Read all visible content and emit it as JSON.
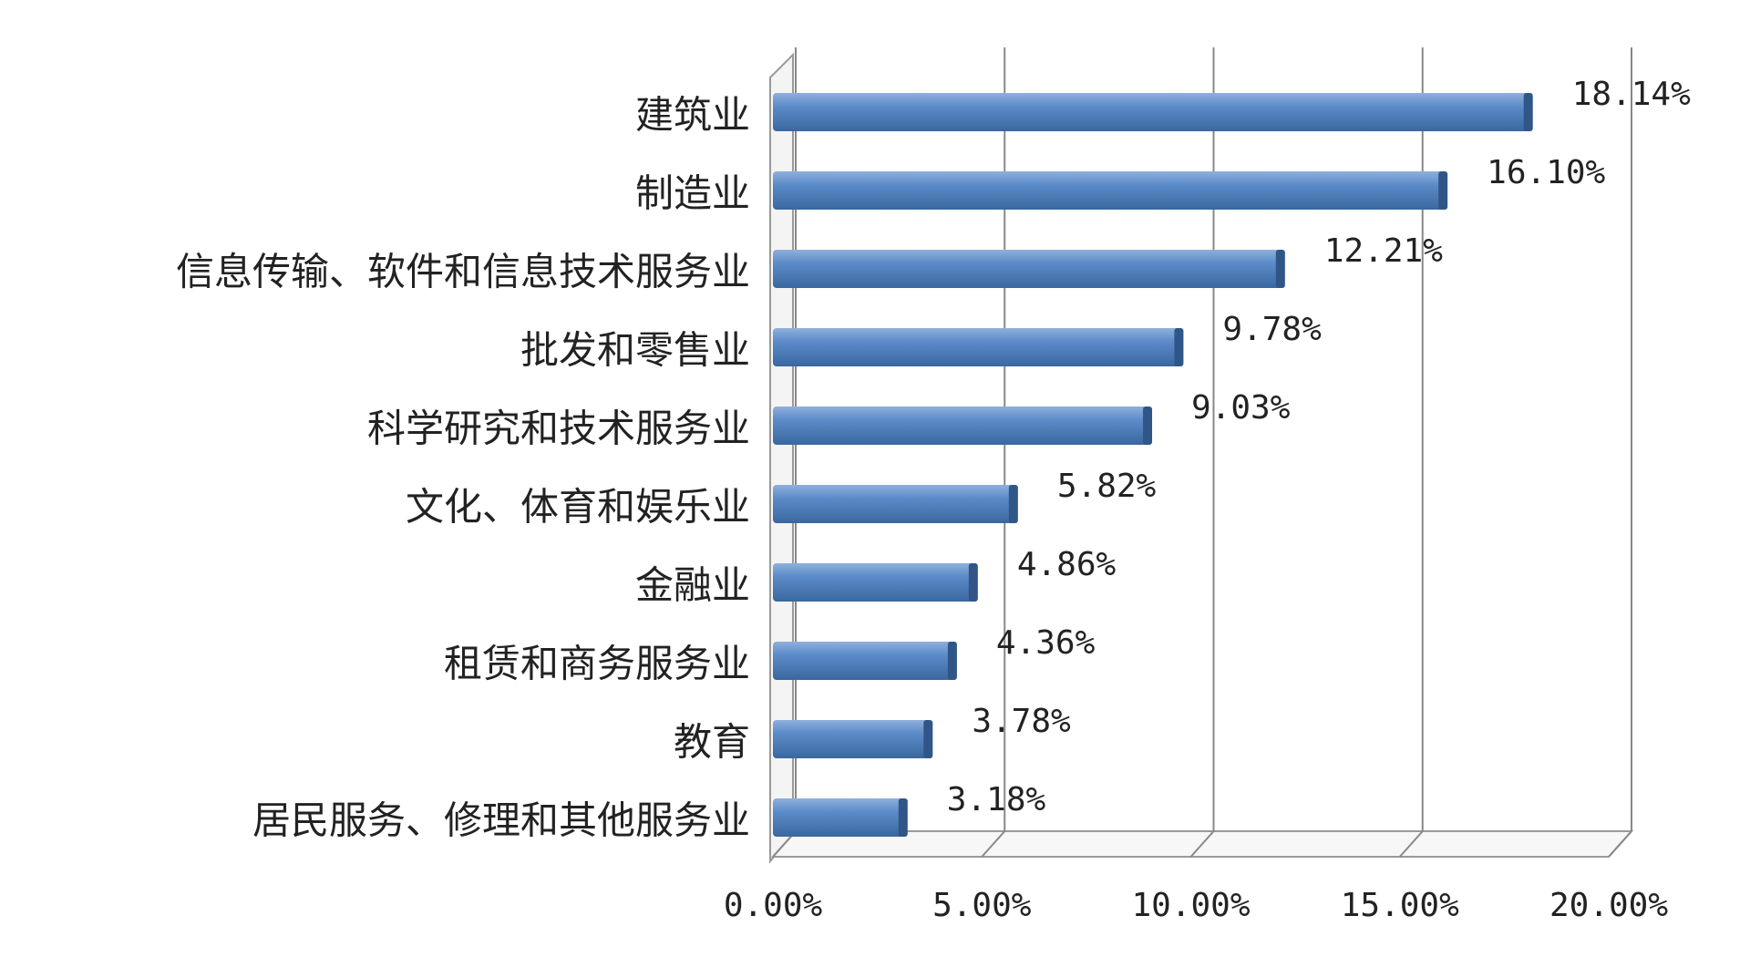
{
  "chart_data": {
    "type": "bar",
    "orientation": "horizontal",
    "categories": [
      "建筑业",
      "制造业",
      "信息传输、软件和信息技术服务业",
      "批发和零售业",
      "科学研究和技术服务业",
      "文化、体育和娱乐业",
      "金融业",
      "租赁和商务服务业",
      "教育",
      "居民服务、修理和其他服务业"
    ],
    "values": [
      18.14,
      16.1,
      12.21,
      9.78,
      9.03,
      5.82,
      4.86,
      4.36,
      3.78,
      3.18
    ],
    "value_labels": [
      "18.14%",
      "16.10%",
      "12.21%",
      "9.78%",
      "9.03%",
      "5.82%",
      "4.86%",
      "4.36%",
      "3.78%",
      "3.18%"
    ],
    "color": "#4f81bd",
    "xlim": [
      0,
      20
    ],
    "xticks": [
      {
        "value": 0,
        "label": "0.00%"
      },
      {
        "value": 5,
        "label": "5.00%"
      },
      {
        "value": 10,
        "label": "10.00%"
      },
      {
        "value": 15,
        "label": "15.00%"
      },
      {
        "value": 20,
        "label": "20.00%"
      }
    ],
    "grid": true
  }
}
